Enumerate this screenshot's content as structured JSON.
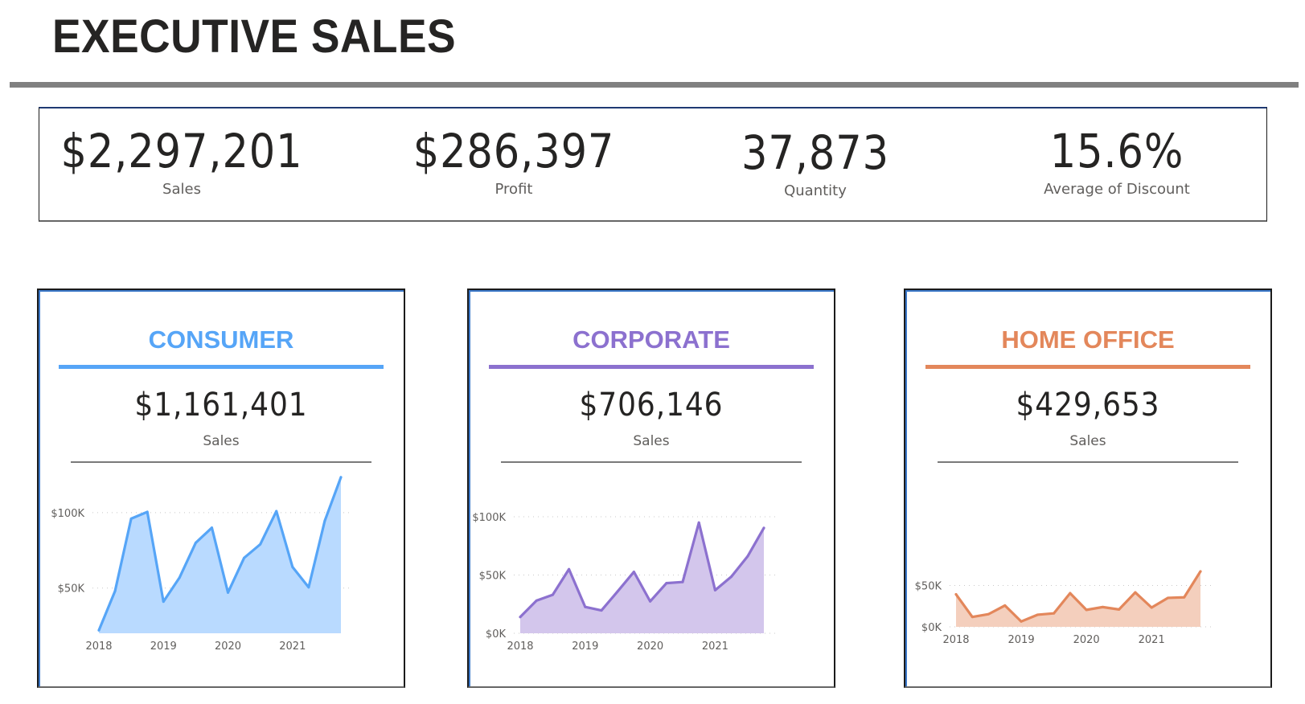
{
  "header": {
    "title": "EXECUTIVE SALES"
  },
  "kpis": [
    {
      "value": "$2,297,201",
      "label": "Sales"
    },
    {
      "value": "$286,397",
      "label": "Profit"
    },
    {
      "value": "37,873",
      "label": "Quantity"
    },
    {
      "value": "15.6%",
      "label": "Average of Discount"
    }
  ],
  "segments": [
    {
      "title": "CONSUMER",
      "color": "#56a5f7",
      "fill": "#b9daff",
      "value": "$1,161,401",
      "label": "Sales"
    },
    {
      "title": "CORPORATE",
      "color": "#8c71cf",
      "fill": "#d3c6ec",
      "value": "$706,146",
      "label": "Sales"
    },
    {
      "title": "HOME OFFICE",
      "color": "#e3875b",
      "fill": "#f4cfbd",
      "value": "$429,653",
      "label": "Sales"
    }
  ],
  "chart_data": [
    {
      "type": "area",
      "title": "CONSUMER",
      "x": [
        "2018 Q1",
        "2018 Q2",
        "2018 Q3",
        "2018 Q4",
        "2019 Q1",
        "2019 Q2",
        "2019 Q3",
        "2019 Q4",
        "2020 Q1",
        "2020 Q2",
        "2020 Q3",
        "2020 Q4",
        "2021 Q1",
        "2021 Q2",
        "2021 Q3",
        "2021 Q4"
      ],
      "x_tick_labels": [
        "2018",
        "2019",
        "2020",
        "2021"
      ],
      "values": [
        22000,
        48000,
        96000,
        100500,
        41000,
        57000,
        80000,
        90000,
        47000,
        70000,
        79000,
        101000,
        64000,
        50500,
        94600,
        123500
      ],
      "y_tick_labels": [
        "$50K",
        "$100K"
      ],
      "y_ticks": [
        50000,
        100000
      ],
      "ylim": [
        20000,
        125000
      ],
      "grid": true,
      "xlabel": "",
      "ylabel": ""
    },
    {
      "type": "area",
      "title": "CORPORATE",
      "x": [
        "2018 Q1",
        "2018 Q2",
        "2018 Q3",
        "2018 Q4",
        "2019 Q1",
        "2019 Q2",
        "2019 Q3",
        "2019 Q4",
        "2020 Q1",
        "2020 Q2",
        "2020 Q3",
        "2020 Q4",
        "2021 Q1",
        "2021 Q2",
        "2021 Q3",
        "2021 Q4"
      ],
      "x_tick_labels": [
        "2018",
        "2019",
        "2020",
        "2021"
      ],
      "values": [
        14000,
        28000,
        33000,
        55000,
        22600,
        19600,
        36000,
        52700,
        27400,
        43000,
        44000,
        95000,
        37000,
        48600,
        66000,
        90400
      ],
      "y_tick_labels": [
        "$0K",
        "$50K",
        "$100K"
      ],
      "y_ticks": [
        0,
        50000,
        100000
      ],
      "ylim": [
        0,
        100000
      ],
      "grid": true,
      "xlabel": "",
      "ylabel": ""
    },
    {
      "type": "area",
      "title": "HOME OFFICE",
      "x": [
        "2018 Q1",
        "2018 Q2",
        "2018 Q3",
        "2018 Q4",
        "2019 Q1",
        "2019 Q2",
        "2019 Q3",
        "2019 Q4",
        "2020 Q1",
        "2020 Q2",
        "2020 Q3",
        "2020 Q4",
        "2021 Q1",
        "2021 Q2",
        "2021 Q3",
        "2021 Q4"
      ],
      "x_tick_labels": [
        "2018",
        "2019",
        "2020",
        "2021"
      ],
      "values": [
        39300,
        12000,
        15400,
        25800,
        6500,
        14600,
        16300,
        40700,
        20500,
        23900,
        21000,
        41600,
        23300,
        35000,
        35700,
        67000
      ],
      "y_tick_labels": [
        "$0K",
        "$50K"
      ],
      "y_ticks": [
        0,
        50000
      ],
      "ylim": [
        0,
        67000
      ],
      "grid": true,
      "xlabel": "",
      "ylabel": ""
    }
  ]
}
